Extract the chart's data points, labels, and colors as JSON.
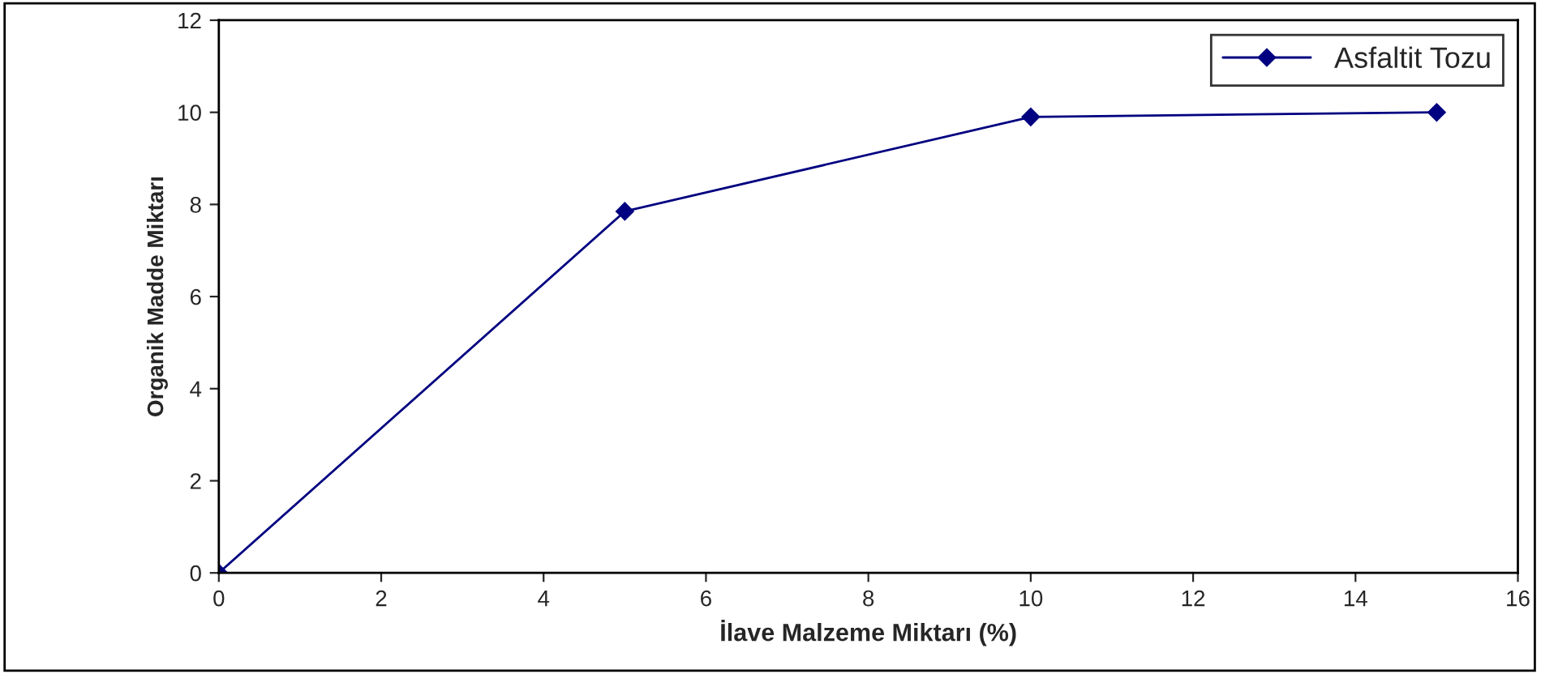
{
  "chart_data": {
    "type": "line",
    "xlabel": "İlave Malzeme Miktarı (%)",
    "ylabel": "Organik Madde Miktarı",
    "x": [
      0,
      5,
      10,
      15
    ],
    "series": [
      {
        "name": "Asfaltit Tozu",
        "color": "#000080",
        "values": [
          0,
          7.85,
          9.9,
          10
        ]
      }
    ],
    "xlim": [
      0,
      16
    ],
    "xticks": [
      0,
      2,
      4,
      6,
      8,
      10,
      12,
      14,
      16
    ],
    "ylim": [
      0,
      12
    ],
    "yticks": [
      0,
      2,
      4,
      6,
      8,
      10,
      12
    ],
    "grid": false,
    "legend": "top right",
    "marker": "diamond",
    "line_style": "solid"
  }
}
